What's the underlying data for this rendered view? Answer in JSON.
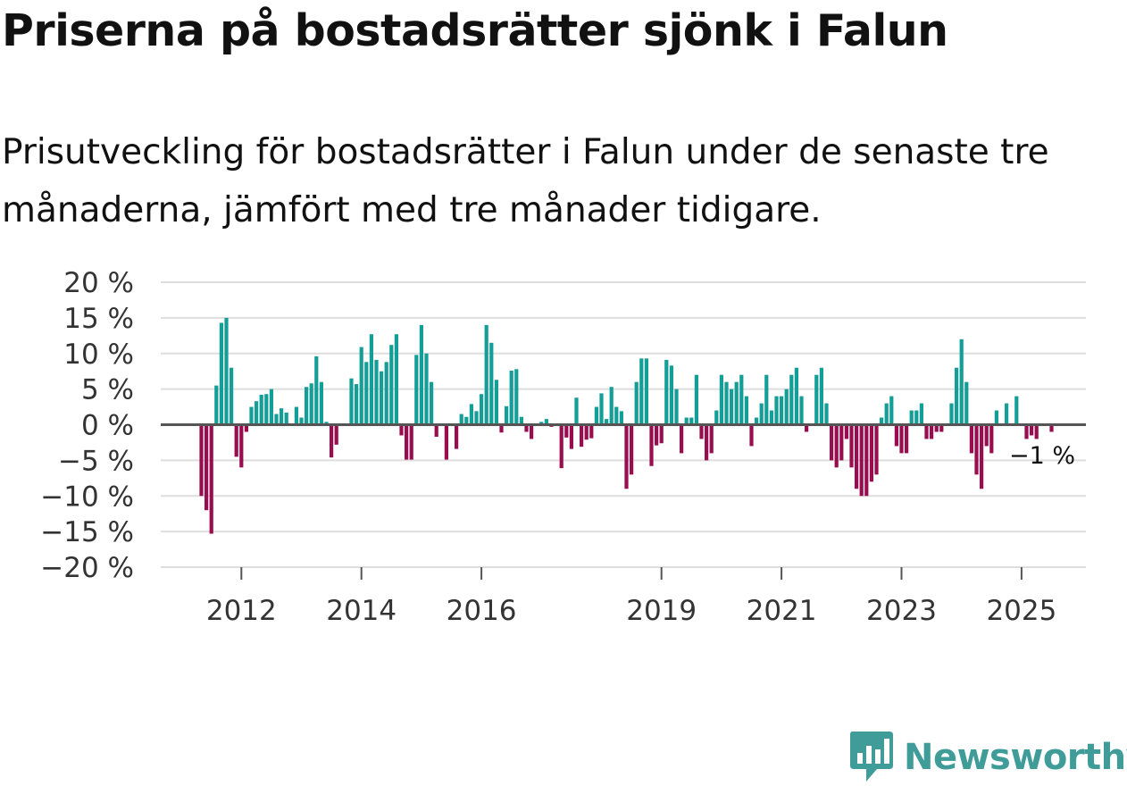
{
  "chart_data": {
    "type": "bar",
    "title": "Priserna på bostadsrätter sjönk i Falun",
    "subtitle": "Prisutveckling för bostadsrätter i Falun under de senaste tre månaderna, jämfört med tre månader tidigare.",
    "xlabel": "",
    "ylabel": "",
    "ylim": [
      -20,
      20
    ],
    "y_ticks": [
      20,
      15,
      10,
      5,
      0,
      -5,
      -10,
      -15,
      -20
    ],
    "y_tick_labels": [
      "20 %",
      "15 %",
      "10 %",
      "5 %",
      "0 %",
      "−5 %",
      "−10 %",
      "−15 %",
      "−20 %"
    ],
    "x_ticks": [
      {
        "year": 2012,
        "label": "2012"
      },
      {
        "year": 2014,
        "label": "2014"
      },
      {
        "year": 2016,
        "label": "2016"
      },
      {
        "year": 2019,
        "label": "2019"
      },
      {
        "year": 2021,
        "label": "2021"
      },
      {
        "year": 2023,
        "label": "2023"
      },
      {
        "year": 2025,
        "label": "2025"
      }
    ],
    "start": "2011-05",
    "frequency": "monthly",
    "positive_color": "#139e98",
    "negative_color": "#990c4f",
    "last_value_label": "−1 %",
    "values": [
      -10,
      -12,
      -15.3,
      5.5,
      14.3,
      15,
      8,
      -4.5,
      -6,
      -1,
      2.5,
      3.3,
      4.2,
      4.3,
      5,
      1.5,
      2.3,
      1.7,
      0,
      2.5,
      1,
      5.3,
      5.8,
      9.6,
      6,
      0.4,
      -4.6,
      -2.8,
      0,
      0,
      6.5,
      5.7,
      10.9,
      8.8,
      12.7,
      9.1,
      7.5,
      8.8,
      11.2,
      12.7,
      -1.5,
      -4.9,
      -4.9,
      9.8,
      14,
      10,
      6,
      -1.7,
      0,
      -4.9,
      0,
      -3.4,
      1.5,
      1.1,
      2.9,
      1.9,
      4.3,
      14,
      11.5,
      6.3,
      -1.1,
      2.6,
      7.6,
      7.8,
      1.1,
      -1,
      -2,
      0,
      0.4,
      0.8,
      -0.3,
      0,
      -6.1,
      -1.8,
      -3.4,
      3.8,
      -3.1,
      -2.1,
      -1.9,
      2.5,
      4.4,
      0.8,
      5.3,
      2.5,
      1.9,
      -9,
      -7,
      6,
      9.3,
      9.3,
      -5.8,
      -2.9,
      -2.6,
      9.1,
      8.3,
      5,
      -4,
      1,
      1,
      7,
      -2,
      -5,
      -4,
      2,
      7,
      6,
      5,
      6,
      7,
      4,
      -3,
      1,
      3,
      7,
      2,
      4,
      4,
      5,
      7,
      8,
      4,
      -1,
      0,
      7,
      8,
      3,
      -5,
      -6,
      -5,
      -2,
      -6,
      -9,
      -10,
      -10,
      -8,
      -7,
      1,
      3,
      4,
      -3,
      -4,
      -4,
      2,
      2,
      3,
      -2,
      -2,
      -1,
      -1,
      0,
      3,
      8,
      12,
      6,
      -4,
      -7,
      -9,
      -3,
      -4,
      2,
      0,
      3,
      0,
      4,
      0,
      -2,
      -1.5,
      -2,
      0,
      0,
      -1
    ]
  },
  "brand": {
    "name": "Newsworthy",
    "icon": "newsworthy-logo-icon",
    "color": "#3f9c99"
  }
}
